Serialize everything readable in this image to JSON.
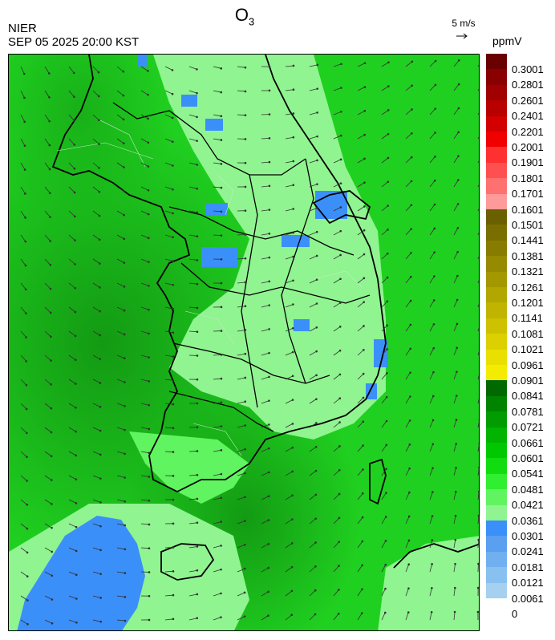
{
  "header": {
    "pollutant": "O",
    "pollutant_sub": "3",
    "agency": "NIER",
    "timestamp": "SEP 05 2025 20:00 KST",
    "wind_ref": "5 m/s",
    "unit": "ppmV"
  },
  "legend": {
    "labels": [
      "0.3001",
      "0.2801",
      "0.2601",
      "0.2401",
      "0.2201",
      "0.2001",
      "0.1901",
      "0.1801",
      "0.1701",
      "0.1601",
      "0.1501",
      "0.1441",
      "0.1381",
      "0.1321",
      "0.1261",
      "0.1201",
      "0.1141",
      "0.1081",
      "0.1021",
      "0.0961",
      "0.0901",
      "0.0841",
      "0.0781",
      "0.0721",
      "0.0661",
      "0.0601",
      "0.0541",
      "0.0481",
      "0.0421",
      "0.0361",
      "0.0301",
      "0.0241",
      "0.0181",
      "0.0121",
      "0.0061",
      "0"
    ],
    "colors": [
      "#6a0000",
      "#8a0000",
      "#a00000",
      "#b80000",
      "#d20000",
      "#f00000",
      "#ff3030",
      "#ff5050",
      "#ff7070",
      "#ff9a9a",
      "#6a6000",
      "#7a6e00",
      "#887c00",
      "#968a00",
      "#a49800",
      "#b2a600",
      "#c0b400",
      "#cec200",
      "#dcd000",
      "#eae000",
      "#f4ec00",
      "#006a00",
      "#008400",
      "#009c00",
      "#00b400",
      "#00c800",
      "#10dc10",
      "#30ee30",
      "#60f460",
      "#90f490",
      "#3b8ff8",
      "#5a9ff0",
      "#70b0f0",
      "#88c0f0",
      "#a6d0f0"
    ]
  }
}
